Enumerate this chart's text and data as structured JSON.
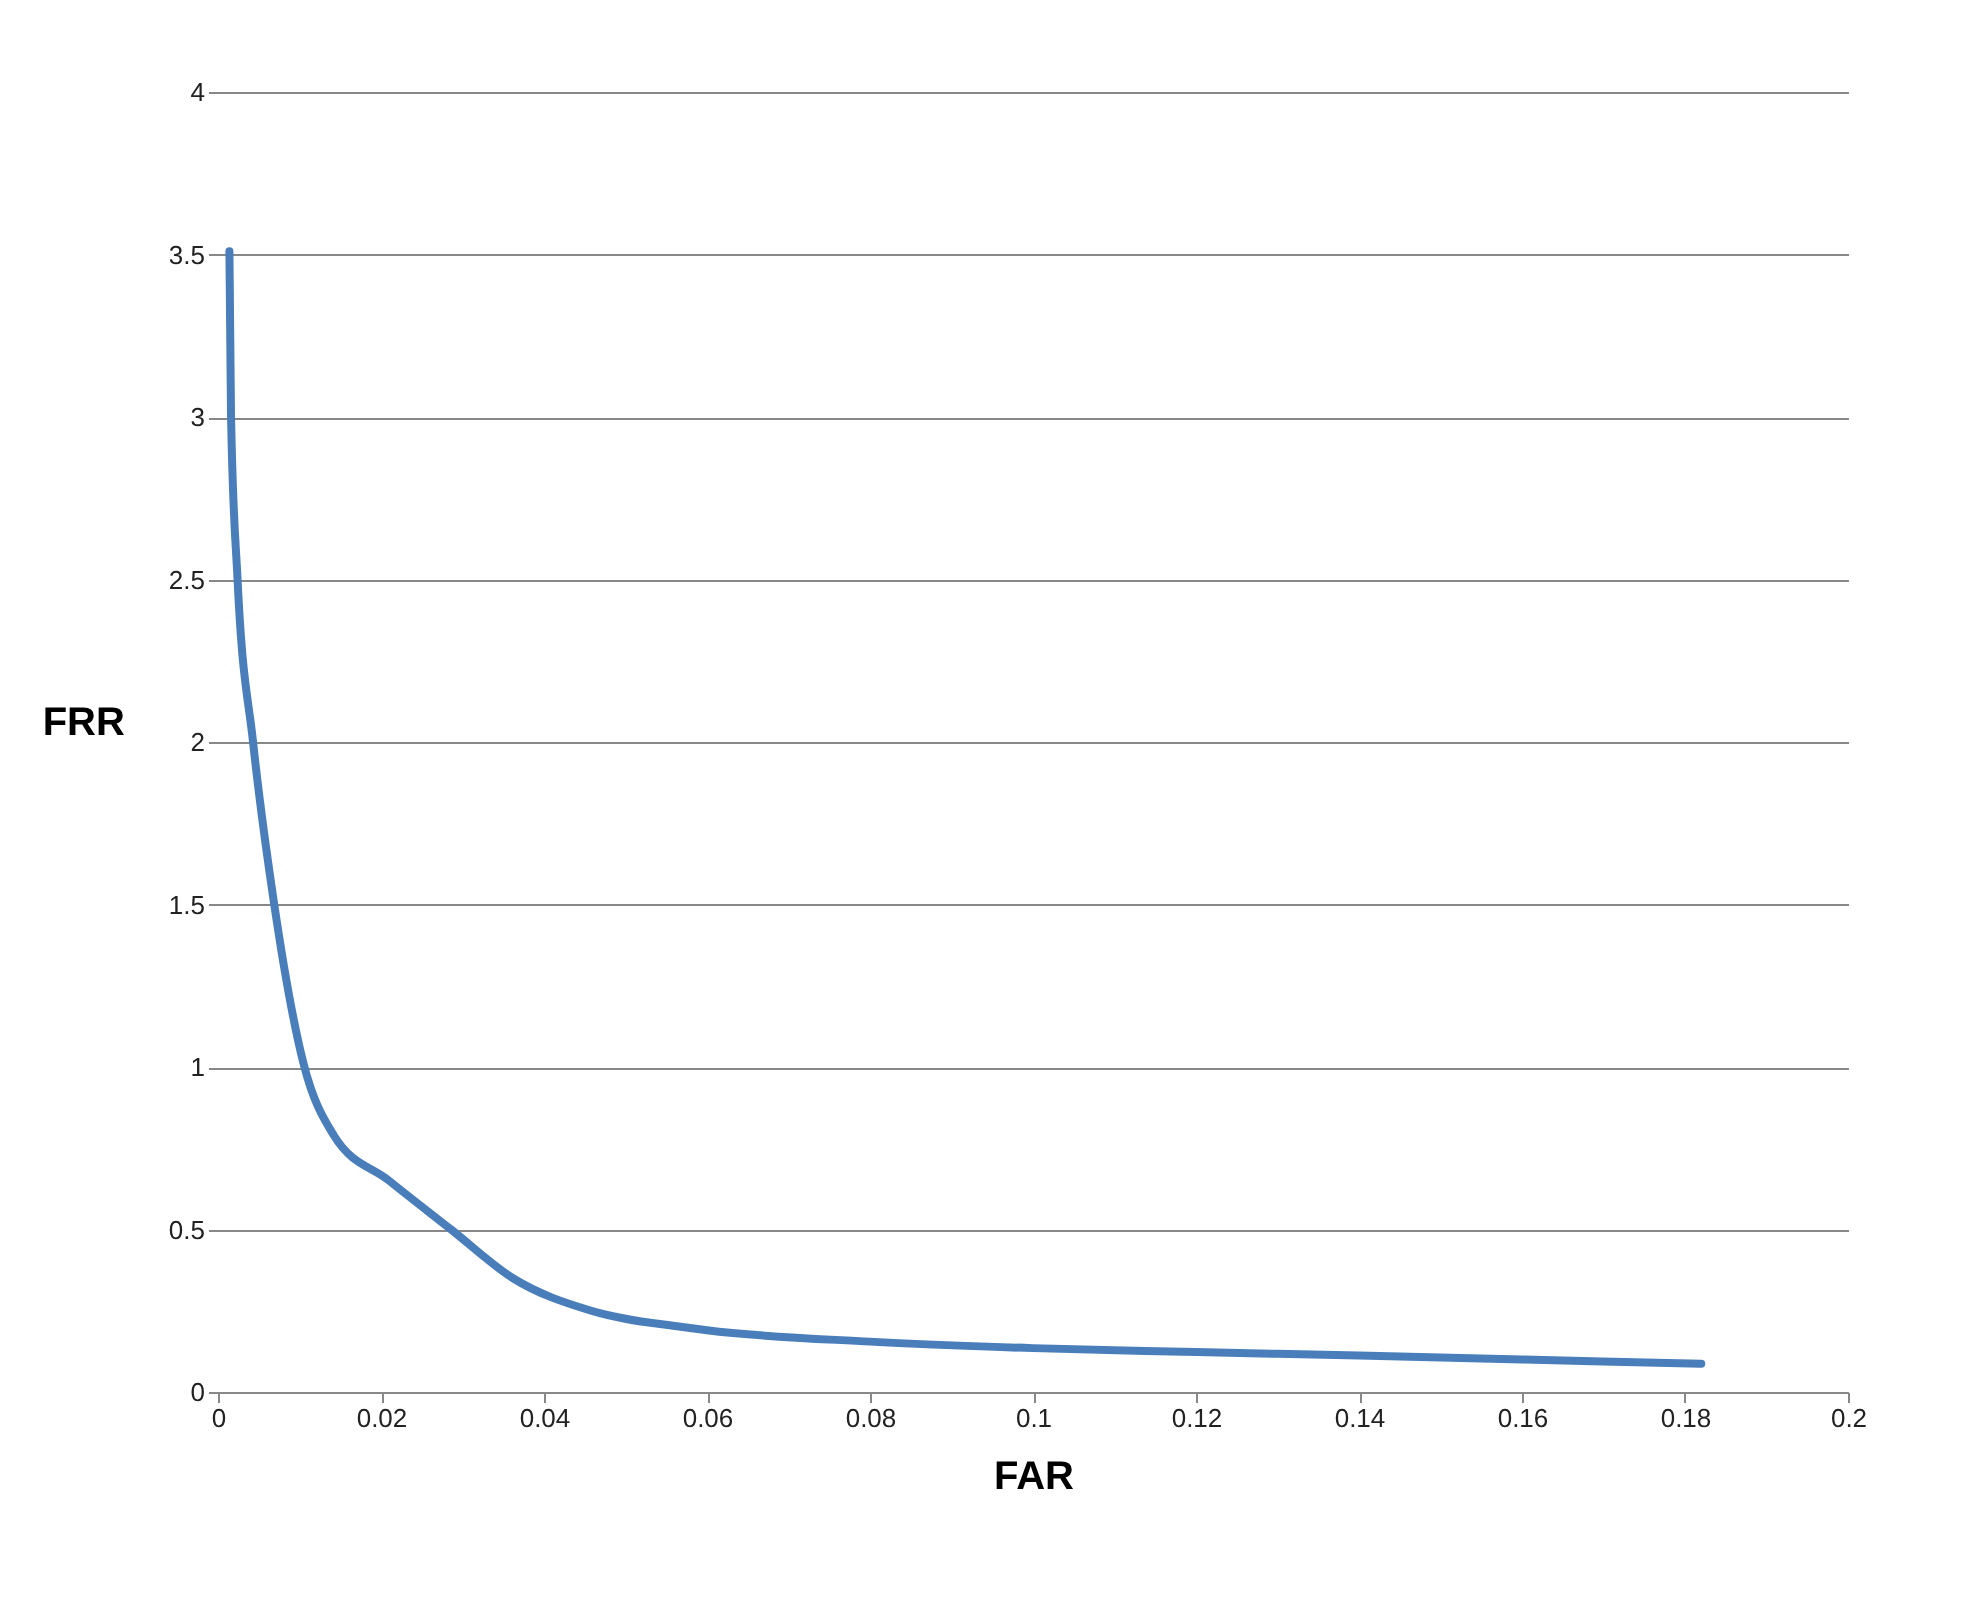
{
  "chart_data": {
    "type": "line",
    "xlabel": "FAR",
    "ylabel": "FRR",
    "x": [
      0.0014,
      0.0016,
      0.0024,
      0.0043,
      0.0069,
      0.0105,
      0.0142,
      0.021,
      0.0286,
      0.0362,
      0.0458,
      0.057,
      0.06,
      0.08,
      0.1,
      0.12,
      0.14,
      0.16,
      0.182
    ],
    "series": [
      {
        "color": "#4a7ebb",
        "values": [
          3.51,
          3.0,
          2.5,
          2.0,
          1.5,
          1.01,
          0.79,
          0.65,
          0.5,
          0.35,
          0.25,
          0.2,
          0.19,
          0.155,
          0.135,
          0.123,
          0.112,
          0.1,
          0.087
        ]
      }
    ],
    "xlim": [
      0,
      0.2
    ],
    "xticks": [
      0,
      0.02,
      0.04,
      0.06,
      0.08,
      0.1,
      0.12,
      0.14,
      0.16,
      0.18,
      0.2
    ],
    "ylim": [
      0,
      4
    ],
    "yticks": [
      0,
      0.5,
      1,
      1.5,
      2,
      2.5,
      3,
      3.5,
      4
    ],
    "grid": "y",
    "legend": false,
    "marker": "none",
    "line_style": "solid"
  }
}
